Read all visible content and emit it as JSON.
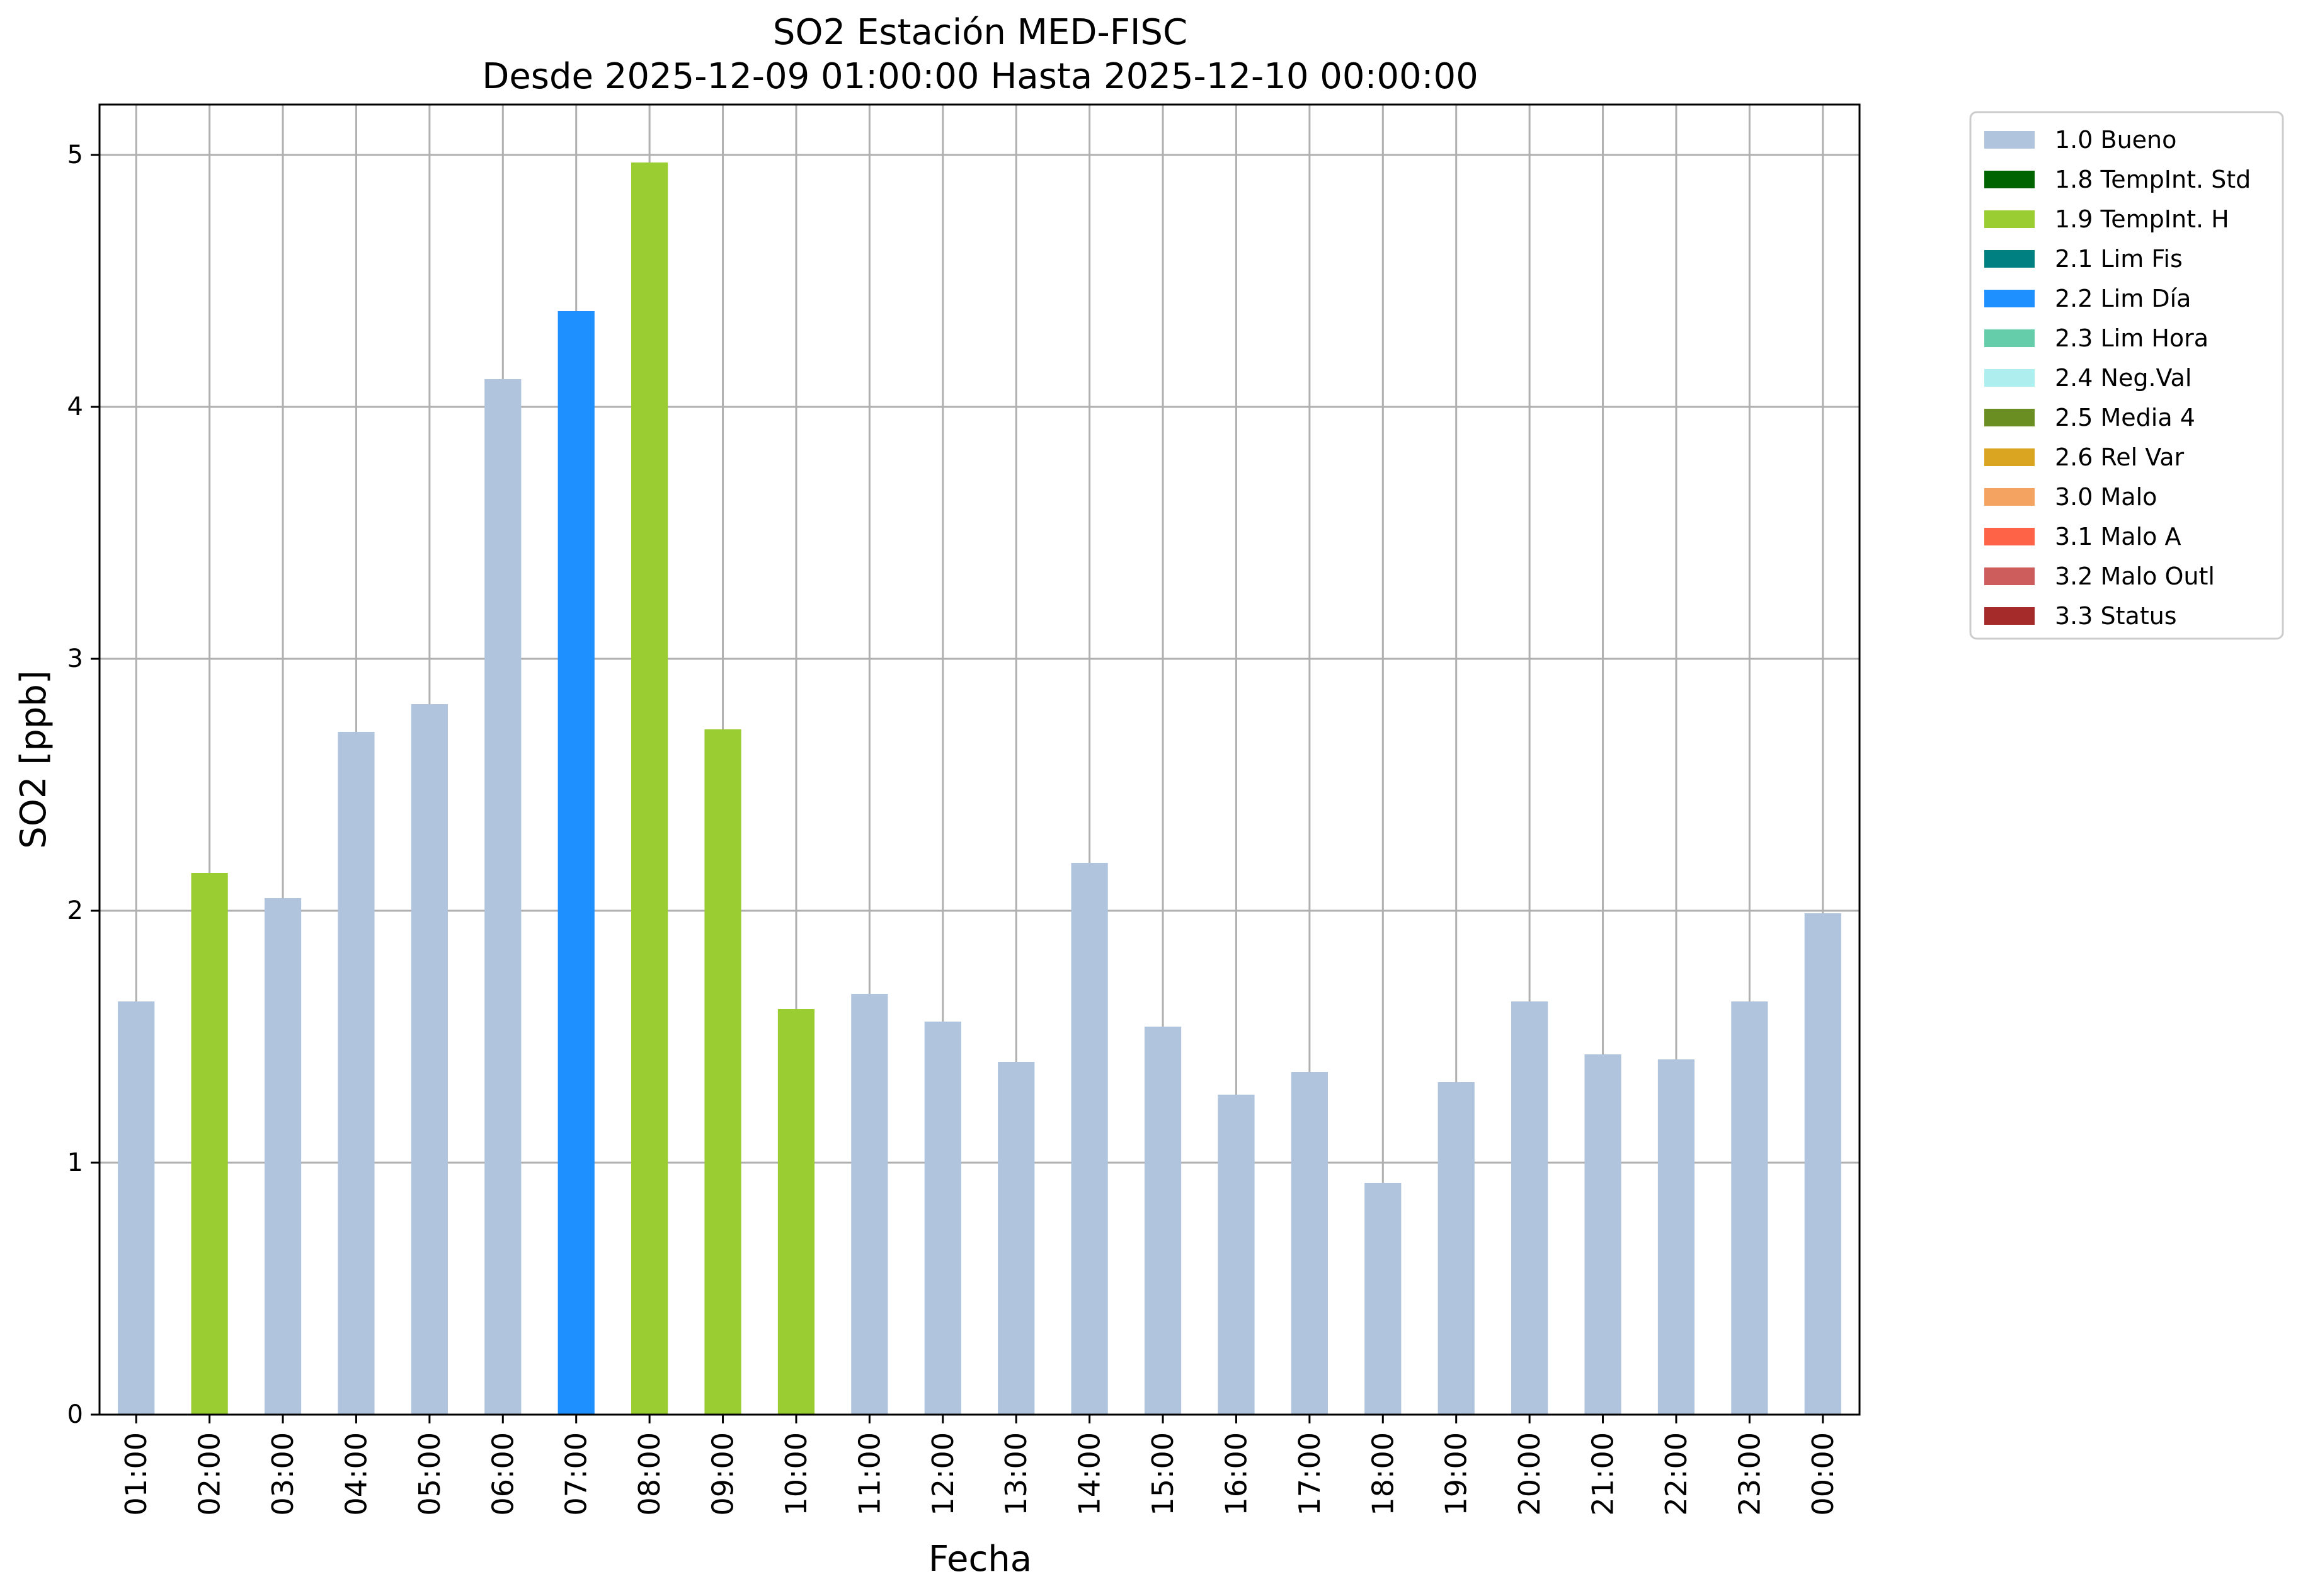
{
  "chart_data": {
    "type": "bar",
    "title_line1": "SO2 Estación MED-FISC",
    "title_line2": "Desde 2025-12-09 01:00:00 Hasta 2025-12-10 00:00:00",
    "xlabel": "Fecha",
    "ylabel": "SO2 [ppb]",
    "ylim": [
      0,
      5.2
    ],
    "yticks": [
      "0",
      "1",
      "2",
      "3",
      "4",
      "5"
    ],
    "grid": true,
    "legend_position": "outside-top-right",
    "categories": [
      "01:00",
      "02:00",
      "03:00",
      "04:00",
      "05:00",
      "06:00",
      "07:00",
      "08:00",
      "09:00",
      "10:00",
      "11:00",
      "12:00",
      "13:00",
      "14:00",
      "15:00",
      "16:00",
      "17:00",
      "18:00",
      "19:00",
      "20:00",
      "21:00",
      "22:00",
      "23:00",
      "00:00"
    ],
    "values": [
      1.64,
      2.15,
      2.05,
      2.71,
      2.82,
      4.11,
      4.38,
      4.97,
      2.72,
      1.61,
      1.67,
      1.56,
      1.4,
      2.19,
      1.54,
      1.27,
      1.36,
      0.92,
      1.32,
      1.64,
      1.43,
      1.41,
      1.64,
      1.99
    ],
    "flags": [
      "1.0 Bueno",
      "1.9 TempInt. H",
      "1.0 Bueno",
      "1.0 Bueno",
      "1.0 Bueno",
      "1.0 Bueno",
      "2.2 Lim Día",
      "1.9 TempInt. H",
      "1.9 TempInt. H",
      "1.9 TempInt. H",
      "1.0 Bueno",
      "1.0 Bueno",
      "1.0 Bueno",
      "1.0 Bueno",
      "1.0 Bueno",
      "1.0 Bueno",
      "1.0 Bueno",
      "1.0 Bueno",
      "1.0 Bueno",
      "1.0 Bueno",
      "1.0 Bueno",
      "1.0 Bueno",
      "1.0 Bueno",
      "1.0 Bueno"
    ],
    "legend": [
      {
        "label": "1.0 Bueno",
        "color": "#b0c4de"
      },
      {
        "label": "1.8 TempInt. Std",
        "color": "#006400"
      },
      {
        "label": "1.9 TempInt. H",
        "color": "#9acd32"
      },
      {
        "label": "2.1 Lim Fis",
        "color": "#008080"
      },
      {
        "label": "2.2 Lim Día",
        "color": "#1e90ff"
      },
      {
        "label": "2.3 Lim Hora",
        "color": "#66cdaa"
      },
      {
        "label": "2.4 Neg.Val",
        "color": "#afeeee"
      },
      {
        "label": "2.5 Media 4",
        "color": "#6b8e23"
      },
      {
        "label": "2.6 Rel Var",
        "color": "#daa520"
      },
      {
        "label": "3.0 Malo",
        "color": "#f4a460"
      },
      {
        "label": "3.1 Malo A",
        "color": "#ff6347"
      },
      {
        "label": "3.2 Malo Outl",
        "color": "#cd5c5c"
      },
      {
        "label": "3.3 Status",
        "color": "#a52a2a"
      }
    ]
  }
}
